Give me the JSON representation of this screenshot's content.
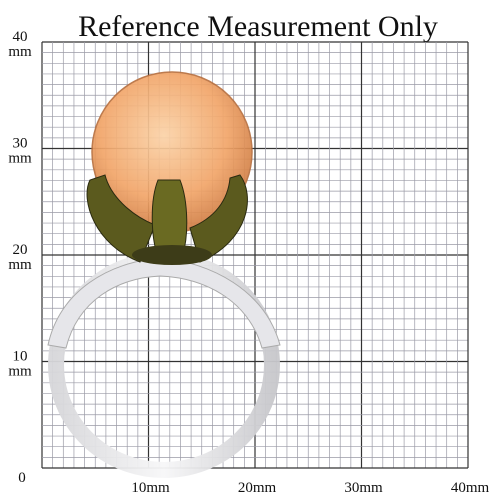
{
  "header": {
    "title": "Reference Measurement Only"
  },
  "y_labels": [
    {
      "number": "40",
      "unit": "mm"
    },
    {
      "number": "30",
      "unit": "mm"
    },
    {
      "number": "20",
      "unit": "mm"
    },
    {
      "number": "10",
      "unit": "mm"
    }
  ],
  "origin_label": "0",
  "x_labels": [
    "10mm",
    "20mm",
    "30mm",
    "40mm"
  ]
}
